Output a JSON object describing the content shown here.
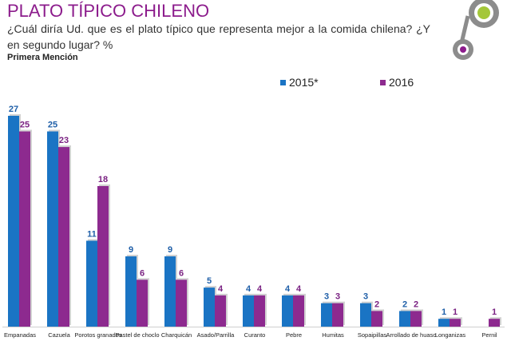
{
  "header": {
    "title": "PLATO TÍPICO CHILENO",
    "question": "¿Cuál diría Ud. que es el plato típico que representa mejor a la comida chilena? ¿Y en segundo lugar? %",
    "subtitle": "Primera Mención"
  },
  "colors": {
    "series_2015": "#1a74c4",
    "series_2016": "#8d2a8f",
    "label_2015": "#1f5fa8",
    "label_2016": "#7a2282",
    "deco_gray": "#8c8c8c",
    "deco_green": "#a4c739",
    "deco_purple": "#8c1c8c"
  },
  "chart_data": {
    "type": "bar",
    "title": "",
    "xlabel": "",
    "ylabel": "",
    "ylim": [
      0,
      27
    ],
    "grid": false,
    "legend": "top-center",
    "categories": [
      "Empanadas",
      "Cazuela",
      "Porotos granados",
      "Pastel de choclo",
      "Charquicán",
      "Asado/Parrilla",
      "Curanto",
      "Pebre",
      "Humitas",
      "Sopaipillas",
      "Arrollado de huaso",
      "Longanizas",
      "Pernil"
    ],
    "series": [
      {
        "name": "2015*",
        "values": [
          27,
          25,
          11,
          9,
          9,
          5,
          4,
          4,
          3,
          3,
          2,
          1,
          0
        ]
      },
      {
        "name": "2016",
        "values": [
          25,
          23,
          18,
          6,
          6,
          4,
          4,
          4,
          3,
          2,
          2,
          1,
          1
        ]
      }
    ]
  }
}
